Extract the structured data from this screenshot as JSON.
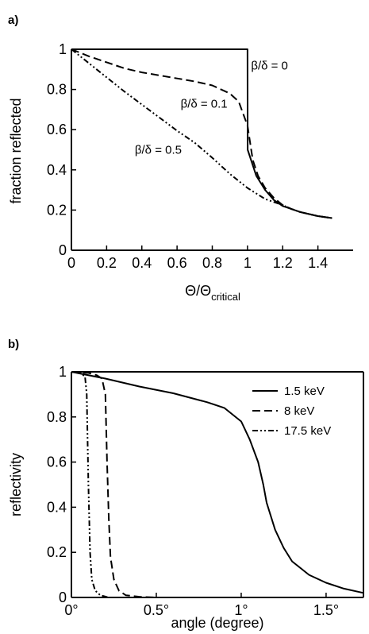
{
  "chart_data": [
    {
      "panel_label": "a)",
      "type": "line",
      "xlabel": "Θ/Θ",
      "xlabel_sub": "critical",
      "ylabel": "fraction reflected",
      "xlim": [
        0,
        1.6
      ],
      "ylim": [
        0,
        1
      ],
      "xticks": [
        "0",
        "0.2",
        "0.4",
        "0.6",
        "0.8",
        "1",
        "1.2",
        "1.4"
      ],
      "yticks": [
        "0",
        "0.2",
        "0.4",
        "0.6",
        "0.8",
        "1"
      ],
      "grid": false,
      "series": [
        {
          "name": "β/δ = 0",
          "style": "solid",
          "x": [
            0,
            0.9,
            1.0,
            1.001,
            1.05,
            1.1,
            1.15,
            1.2,
            1.25,
            1.3,
            1.4,
            1.48
          ],
          "y": [
            1.0,
            1.0,
            1.0,
            0.5,
            0.37,
            0.3,
            0.25,
            0.22,
            0.205,
            0.19,
            0.17,
            0.16
          ]
        },
        {
          "name": "β/δ = 0.1",
          "style": "dashed",
          "x": [
            0,
            0.1,
            0.2,
            0.3,
            0.4,
            0.5,
            0.6,
            0.7,
            0.8,
            0.9,
            0.95,
            1.0,
            1.03,
            1.06,
            1.1,
            1.15,
            1.2,
            1.25,
            1.3,
            1.4,
            1.48
          ],
          "y": [
            1.0,
            0.965,
            0.935,
            0.905,
            0.885,
            0.87,
            0.855,
            0.84,
            0.82,
            0.78,
            0.74,
            0.62,
            0.45,
            0.37,
            0.31,
            0.26,
            0.225,
            0.205,
            0.19,
            0.17,
            0.16
          ]
        },
        {
          "name": "β/δ = 0.5",
          "style": "dashdot",
          "x": [
            0,
            0.1,
            0.2,
            0.3,
            0.4,
            0.5,
            0.6,
            0.7,
            0.8,
            0.9,
            1.0,
            1.1,
            1.2,
            1.25,
            1.3,
            1.4,
            1.48
          ],
          "y": [
            1.0,
            0.93,
            0.86,
            0.79,
            0.725,
            0.66,
            0.595,
            0.535,
            0.46,
            0.38,
            0.31,
            0.255,
            0.225,
            0.205,
            0.19,
            0.17,
            0.16
          ]
        }
      ],
      "annotations": [
        {
          "text": "β/δ = 0",
          "x": 1.02,
          "y": 0.9
        },
        {
          "text": "β/δ = 0.1",
          "x": 0.62,
          "y": 0.71
        },
        {
          "text": "β/δ = 0.5",
          "x": 0.36,
          "y": 0.48
        }
      ]
    },
    {
      "panel_label": "b)",
      "type": "line",
      "xlabel": "angle (degree)",
      "ylabel": "reflectivity",
      "xlim": [
        0,
        1.72
      ],
      "ylim": [
        0,
        1
      ],
      "xticks": [
        "0°",
        "0.5°",
        "1°",
        "1.5°"
      ],
      "xtick_values": [
        0,
        0.5,
        1,
        1.5
      ],
      "yticks": [
        "0",
        "0.2",
        "0.4",
        "0.6",
        "0.8",
        "1"
      ],
      "grid": false,
      "legend_position": "top-right",
      "series": [
        {
          "name": "1.5 keV",
          "style": "solid",
          "x": [
            0,
            0.2,
            0.4,
            0.6,
            0.8,
            0.9,
            1.0,
            1.05,
            1.1,
            1.13,
            1.15,
            1.2,
            1.25,
            1.3,
            1.4,
            1.5,
            1.6,
            1.72
          ],
          "y": [
            1.0,
            0.97,
            0.935,
            0.905,
            0.865,
            0.84,
            0.78,
            0.7,
            0.6,
            0.5,
            0.42,
            0.3,
            0.22,
            0.16,
            0.1,
            0.065,
            0.04,
            0.02
          ]
        },
        {
          "name": "8 keV",
          "style": "dashed",
          "x": [
            0,
            0.1,
            0.15,
            0.18,
            0.2,
            0.21,
            0.22,
            0.23,
            0.25,
            0.28,
            0.32,
            0.4,
            0.5,
            1.72
          ],
          "y": [
            1.0,
            0.995,
            0.985,
            0.97,
            0.9,
            0.6,
            0.35,
            0.18,
            0.08,
            0.03,
            0.01,
            0.003,
            0.0,
            0.0
          ]
        },
        {
          "name": "17.5 keV",
          "style": "dashdot",
          "x": [
            0,
            0.05,
            0.08,
            0.09,
            0.1,
            0.11,
            0.12,
            0.14,
            0.17,
            0.22,
            1.72
          ],
          "y": [
            1.0,
            0.995,
            0.98,
            0.9,
            0.5,
            0.2,
            0.08,
            0.03,
            0.01,
            0.0,
            0.0
          ]
        }
      ]
    }
  ]
}
